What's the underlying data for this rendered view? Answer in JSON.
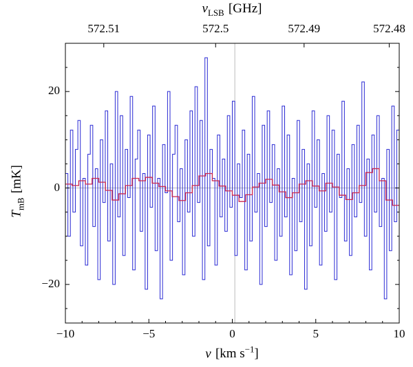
{
  "labels": {
    "top": {
      "symbol": "ν",
      "sub": "LSB",
      "unit": "[GHz]"
    },
    "x": {
      "symbol": "v",
      "unit_prefix": "[km s",
      "sup": "−1",
      "unit_suffix": "]"
    },
    "y": {
      "symbol": "T",
      "sub": "mB",
      "unit": "[mK]"
    }
  },
  "chart_data": {
    "type": "line",
    "style": "step-histogram",
    "title": "",
    "xlabel": "v [km s^-1]",
    "ylabel": "T_mB [mK]",
    "top_axis_label": "nu_LSB [GHz]",
    "xlim": [
      -10,
      10
    ],
    "ylim": [
      -28,
      30
    ],
    "grid": false,
    "x_axis": {
      "ticks": [
        -10,
        -5,
        0,
        5,
        10
      ],
      "tick_labels": [
        "−10",
        "−5",
        "0",
        "5",
        "10"
      ],
      "minor_step": 1
    },
    "y_axis": {
      "ticks": [
        -20,
        0,
        20
      ],
      "tick_labels": [
        "−20",
        "0",
        "20"
      ],
      "minor_step": 5
    },
    "top_axis": {
      "tick_labels": [
        "572.51",
        "572.5",
        "572.49",
        "572.48"
      ],
      "tick_positions_v": [
        -7.7,
        -1.0,
        4.3,
        9.4
      ]
    },
    "reference_lines": {
      "horizontal_y": 0,
      "vertical_v": 0.15,
      "color": "#bcbcbc"
    },
    "series": [
      {
        "name": "observed-spectrum",
        "color": "#2929d4",
        "line_width": 1,
        "x_start": -10,
        "values": [
          3,
          -10,
          12,
          -5,
          8,
          14,
          -12,
          2,
          -16,
          7,
          13,
          -8,
          4,
          -19,
          10,
          -3,
          16,
          -11,
          5,
          -20,
          20,
          -6,
          15,
          -14,
          8,
          -2,
          19,
          -17,
          6,
          12,
          -9,
          3,
          -21,
          11,
          -4,
          17,
          -13,
          2,
          -23,
          9,
          -1,
          20,
          -15,
          7,
          13,
          -7,
          4,
          -18,
          10,
          -5,
          16,
          -10,
          21,
          -3,
          14,
          -19,
          27,
          -12,
          8,
          2,
          -16,
          11,
          -6,
          6,
          -9,
          15,
          -4,
          18,
          -14,
          5,
          -2,
          12,
          -17,
          7,
          -11,
          19,
          -5,
          3,
          -20,
          13,
          -8,
          16,
          -3,
          9,
          -15,
          4,
          -10,
          17,
          -6,
          11,
          -18,
          2,
          -13,
          14,
          -7,
          8,
          -21,
          5,
          -12,
          16,
          -4,
          10,
          -16,
          3,
          -9,
          15,
          -5,
          12,
          -19,
          7,
          -2,
          18,
          -11,
          4,
          -14,
          9,
          -6,
          13,
          -3,
          22,
          -10,
          6,
          -17,
          11,
          -5,
          15,
          -8,
          2,
          -23,
          8,
          -13,
          17,
          -7,
          12
        ]
      },
      {
        "name": "smoothed-spectrum",
        "color": "#c9264e",
        "line_width": 1.3,
        "x_start": -10,
        "values": [
          0.8,
          0.5,
          1.5,
          0.8,
          2,
          1.2,
          -0.5,
          -2.5,
          -1.2,
          0.5,
          2,
          1.5,
          2.2,
          1,
          0.3,
          -0.6,
          -1.8,
          -2.6,
          -1,
          0.5,
          2.5,
          3,
          1.5,
          0.4,
          -0.6,
          -1.5,
          -2.8,
          -1.4,
          0.2,
          1,
          1.8,
          0.6,
          -0.8,
          -2,
          -1,
          0.8,
          1.5,
          0.4,
          -0.6,
          1,
          0.2,
          -1.5,
          -2.4,
          -1,
          0.5,
          3.2,
          4,
          1.5,
          -2.5,
          -3.6
        ]
      }
    ]
  }
}
